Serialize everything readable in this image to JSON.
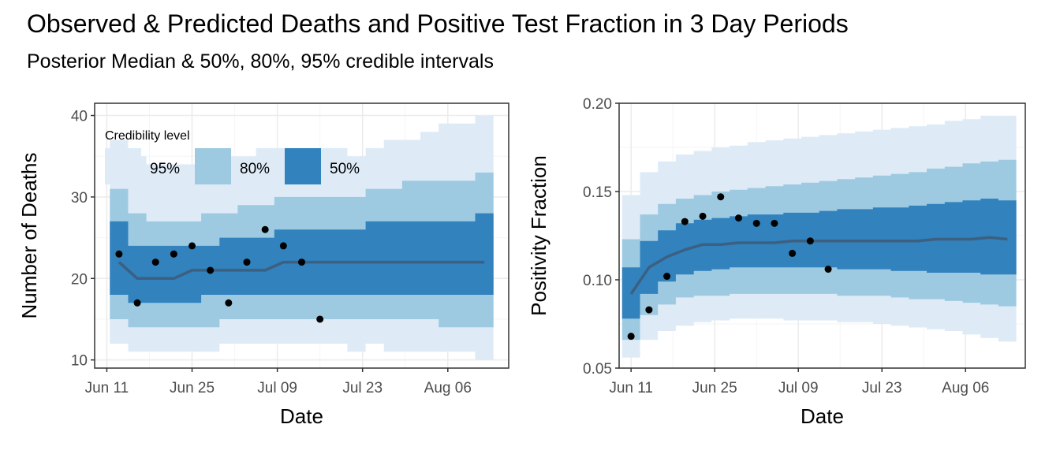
{
  "title": "Observed & Predicted Deaths and Positive Test Fraction in 3 Day Periods",
  "subtitle": "Posterior Median & 50%, 80%, 95% credible intervals",
  "colors": {
    "band95": "#deebf7",
    "band80": "#9ecae1",
    "band50": "#3182bd",
    "median": "#3d5f80",
    "point": "#000000",
    "grid_major": "#ebebeb",
    "grid_minor": "#f5f5f5",
    "border": "#333333"
  },
  "legend": {
    "title": "Credibility level",
    "items": [
      "95%",
      "80%",
      "50%"
    ]
  },
  "chart_data": [
    {
      "type": "area",
      "xlabel": "Date",
      "ylabel": "Number of Deaths",
      "xlim": [
        "2020-06-09",
        "2020-08-16"
      ],
      "ylim": [
        9,
        41.5
      ],
      "x_ticks": [
        "Jun 11",
        "Jun 25",
        "Jul 09",
        "Jul 23",
        "Aug 06"
      ],
      "x_tick_dates": [
        "2020-06-11",
        "2020-06-25",
        "2020-07-09",
        "2020-07-23",
        "2020-08-06"
      ],
      "y_ticks": [
        10,
        20,
        30,
        40
      ],
      "grid": true,
      "legend_position": "top-left",
      "x": [
        "2020-06-13",
        "2020-06-16",
        "2020-06-19",
        "2020-06-22",
        "2020-06-25",
        "2020-06-28",
        "2020-07-01",
        "2020-07-04",
        "2020-07-07",
        "2020-07-10",
        "2020-07-13",
        "2020-07-16",
        "2020-07-19",
        "2020-07-22",
        "2020-07-25",
        "2020-07-28",
        "2020-07-31",
        "2020-08-03",
        "2020-08-06",
        "2020-08-09",
        "2020-08-12"
      ],
      "median": [
        22,
        20,
        20,
        20,
        21,
        21,
        21,
        21,
        21,
        22,
        22,
        22,
        22,
        22,
        22,
        22,
        22,
        22,
        22,
        22,
        22
      ],
      "lo50": [
        18,
        17,
        17,
        17,
        17,
        18,
        18,
        18,
        18,
        18,
        18,
        18,
        18,
        18,
        18,
        18,
        18,
        18,
        18,
        18,
        18
      ],
      "hi50": [
        27,
        24,
        24,
        24,
        24,
        24,
        25,
        25,
        25,
        26,
        26,
        26,
        26,
        26,
        27,
        27,
        27,
        27,
        27,
        27,
        28
      ],
      "lo80": [
        15,
        14,
        14,
        14,
        14,
        14,
        15,
        15,
        15,
        15,
        15,
        15,
        15,
        15,
        15,
        15,
        15,
        15,
        14,
        14,
        14
      ],
      "hi80": [
        31,
        28,
        27,
        27,
        27,
        28,
        28,
        29,
        29,
        30,
        30,
        30,
        30,
        30,
        31,
        31,
        32,
        32,
        32,
        32,
        33
      ],
      "lo95": [
        12,
        11,
        11,
        11,
        11,
        11,
        12,
        12,
        12,
        12,
        12,
        12,
        12,
        11,
        12,
        11,
        11,
        11,
        11,
        11,
        10
      ],
      "hi95": [
        37,
        35,
        34,
        34,
        34,
        35,
        35,
        35,
        36,
        36,
        36,
        36,
        36,
        35,
        36,
        37,
        37,
        38,
        39,
        39,
        40
      ],
      "observed": {
        "x": [
          "2020-06-13",
          "2020-06-16",
          "2020-06-19",
          "2020-06-22",
          "2020-06-25",
          "2020-06-28",
          "2020-07-01",
          "2020-07-04",
          "2020-07-07",
          "2020-07-10",
          "2020-07-13",
          "2020-07-16"
        ],
        "y": [
          23,
          17,
          22,
          23,
          24,
          21,
          17,
          22,
          26,
          24,
          22,
          15
        ]
      }
    },
    {
      "type": "area",
      "xlabel": "Date",
      "ylabel": "Positivity Fraction",
      "xlim": [
        "2020-06-09",
        "2020-08-16"
      ],
      "ylim": [
        0.05,
        0.2
      ],
      "x_ticks": [
        "Jun 11",
        "Jun 25",
        "Jul 09",
        "Jul 23",
        "Aug 06"
      ],
      "x_tick_dates": [
        "2020-06-11",
        "2020-06-25",
        "2020-07-09",
        "2020-07-23",
        "2020-08-06"
      ],
      "y_ticks": [
        "0.05",
        "0.10",
        "0.15",
        "0.20"
      ],
      "grid": true,
      "x": [
        "2020-06-11",
        "2020-06-14",
        "2020-06-17",
        "2020-06-20",
        "2020-06-23",
        "2020-06-26",
        "2020-06-29",
        "2020-07-02",
        "2020-07-05",
        "2020-07-08",
        "2020-07-11",
        "2020-07-14",
        "2020-07-17",
        "2020-07-20",
        "2020-07-23",
        "2020-07-26",
        "2020-07-29",
        "2020-08-01",
        "2020-08-04",
        "2020-08-07",
        "2020-08-10",
        "2020-08-13"
      ],
      "median": [
        0.092,
        0.107,
        0.113,
        0.117,
        0.12,
        0.12,
        0.121,
        0.121,
        0.121,
        0.122,
        0.122,
        0.122,
        0.122,
        0.122,
        0.122,
        0.122,
        0.122,
        0.123,
        0.123,
        0.123,
        0.124,
        0.123
      ],
      "lo50": [
        0.078,
        0.092,
        0.099,
        0.103,
        0.105,
        0.106,
        0.107,
        0.107,
        0.107,
        0.107,
        0.107,
        0.107,
        0.106,
        0.106,
        0.106,
        0.105,
        0.105,
        0.104,
        0.104,
        0.104,
        0.103,
        0.103
      ],
      "hi50": [
        0.107,
        0.122,
        0.128,
        0.132,
        0.134,
        0.135,
        0.136,
        0.137,
        0.137,
        0.138,
        0.138,
        0.139,
        0.14,
        0.14,
        0.141,
        0.141,
        0.142,
        0.143,
        0.144,
        0.145,
        0.146,
        0.145
      ],
      "lo80": [
        0.066,
        0.08,
        0.086,
        0.09,
        0.091,
        0.091,
        0.092,
        0.092,
        0.092,
        0.092,
        0.092,
        0.092,
        0.091,
        0.091,
        0.091,
        0.09,
        0.089,
        0.089,
        0.088,
        0.087,
        0.086,
        0.085
      ],
      "hi80": [
        0.123,
        0.137,
        0.143,
        0.146,
        0.148,
        0.15,
        0.151,
        0.152,
        0.153,
        0.154,
        0.155,
        0.156,
        0.157,
        0.158,
        0.159,
        0.16,
        0.161,
        0.163,
        0.164,
        0.166,
        0.167,
        0.168
      ],
      "lo95": [
        0.056,
        0.066,
        0.071,
        0.074,
        0.076,
        0.077,
        0.078,
        0.078,
        0.078,
        0.077,
        0.077,
        0.077,
        0.076,
        0.076,
        0.075,
        0.074,
        0.073,
        0.072,
        0.071,
        0.069,
        0.067,
        0.065
      ],
      "hi95": [
        0.148,
        0.161,
        0.167,
        0.171,
        0.173,
        0.175,
        0.176,
        0.178,
        0.179,
        0.18,
        0.181,
        0.182,
        0.183,
        0.184,
        0.185,
        0.186,
        0.187,
        0.188,
        0.19,
        0.191,
        0.193,
        0.193
      ],
      "observed": {
        "x": [
          "2020-06-11",
          "2020-06-14",
          "2020-06-17",
          "2020-06-20",
          "2020-06-23",
          "2020-06-26",
          "2020-06-29",
          "2020-07-02",
          "2020-07-05",
          "2020-07-08",
          "2020-07-11",
          "2020-07-14"
        ],
        "y": [
          0.068,
          0.083,
          0.102,
          0.133,
          0.136,
          0.147,
          0.135,
          0.132,
          0.132,
          0.115,
          0.122,
          0.106
        ]
      }
    }
  ]
}
